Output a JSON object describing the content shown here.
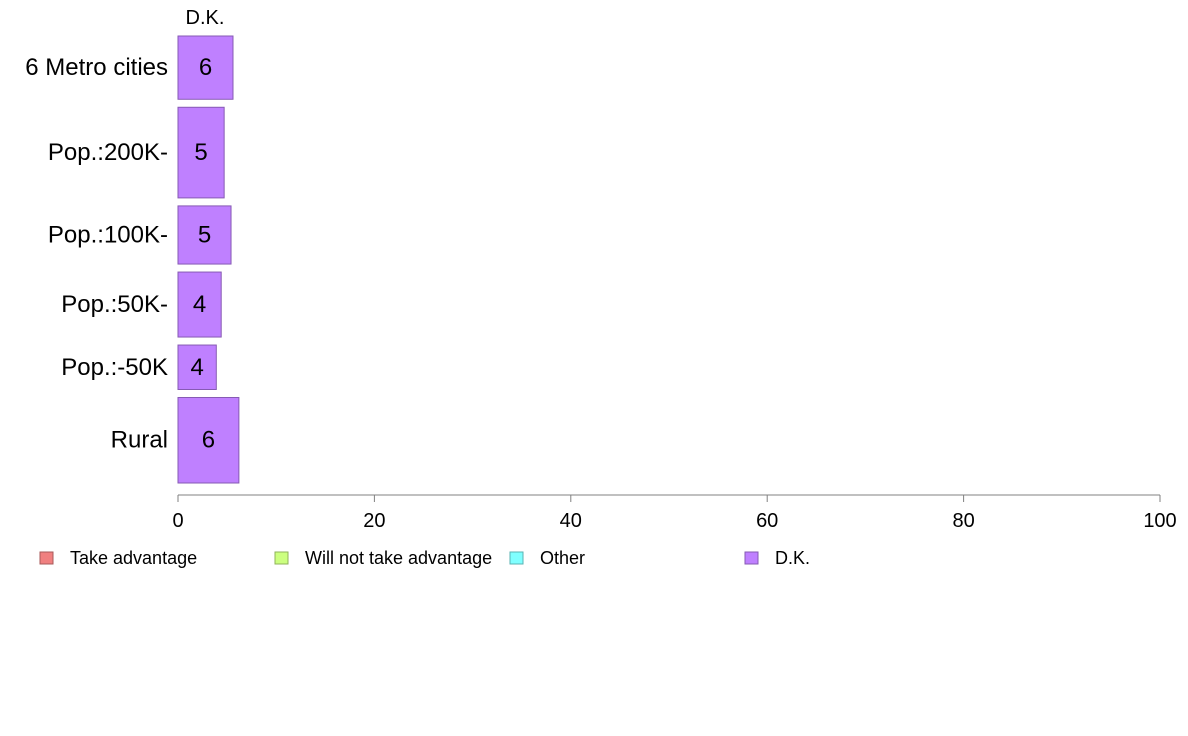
{
  "chart_data": {
    "type": "bar",
    "orientation": "horizontal",
    "stacked": true,
    "categories": [
      "6 Metro cities",
      "Pop.:200K-",
      "Pop.:100K-",
      "Pop.:50K-",
      "Pop.:-50K",
      "Rural"
    ],
    "series": [
      {
        "name": "Take advantage",
        "color": "#f08080",
        "values": [
          null,
          null,
          null,
          null,
          null,
          null
        ]
      },
      {
        "name": "Will not take advantage",
        "color": "#ccff80",
        "values": [
          null,
          null,
          null,
          null,
          null,
          null
        ]
      },
      {
        "name": "Other",
        "color": "#80ffff",
        "values": [
          null,
          null,
          null,
          null,
          null,
          null
        ]
      },
      {
        "name": "D.K.",
        "color": "#bf80ff",
        "values": [
          5.6,
          4.7,
          5.4,
          4.4,
          3.9,
          6.2
        ],
        "labels": [
          "6",
          "5",
          "5",
          "4",
          "4",
          "6"
        ]
      }
    ],
    "series_header": "D.K.",
    "xlim": [
      0,
      100
    ],
    "xticks": [
      "0",
      "20",
      "40",
      "60",
      "80",
      "100"
    ],
    "bar_widths_relative": [
      0.74,
      1.06,
      0.68,
      0.76,
      0.52,
      1.0
    ],
    "legend_position": "bottom",
    "grid": false
  }
}
